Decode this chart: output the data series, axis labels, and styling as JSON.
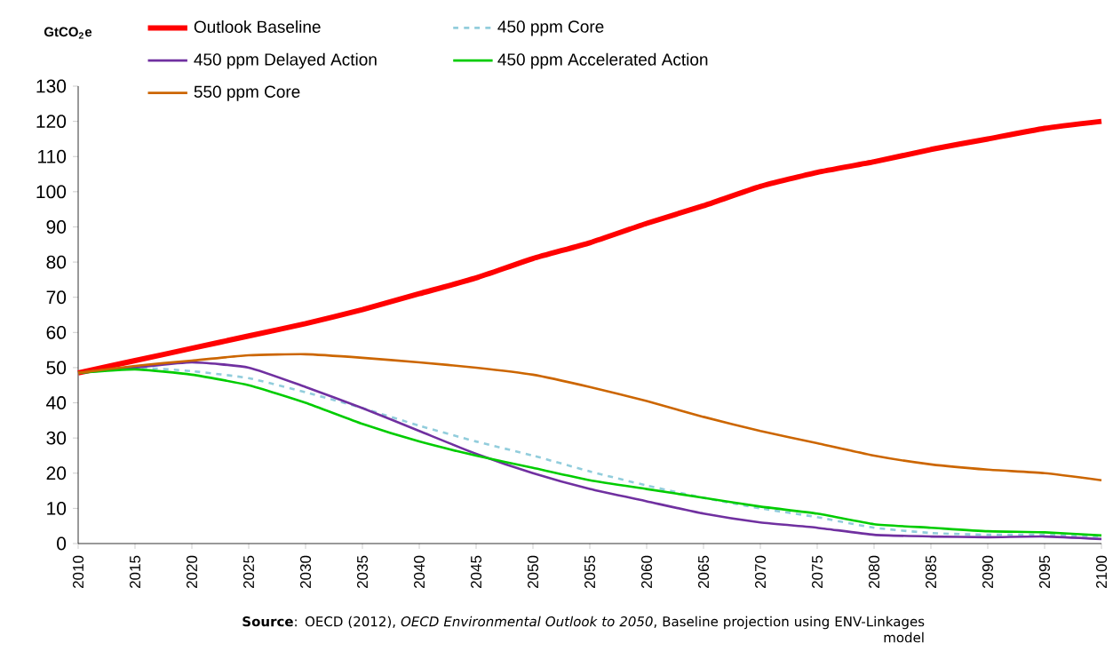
{
  "chart_data": {
    "type": "line",
    "ylabel": "GtCO$_{2}$e",
    "x": [
      2010,
      2015,
      2020,
      2025,
      2030,
      2035,
      2040,
      2045,
      2050,
      2055,
      2060,
      2065,
      2070,
      2075,
      2080,
      2085,
      2090,
      2095,
      2100
    ],
    "series": [
      {
        "name": "Outlook Baseline",
        "color": "#ff0000",
        "values": [
          48.5,
          52,
          55.5,
          59,
          62.5,
          66.5,
          71,
          75.5,
          81,
          85.5,
          91,
          96,
          101.5,
          105.5,
          108.5,
          112,
          115,
          118,
          120
        ]
      },
      {
        "name": "450 ppm Core",
        "color": "#92cddc",
        "line_style": "dashed",
        "values": [
          48.5,
          50,
          49,
          47,
          43,
          38.5,
          33.5,
          29,
          25,
          20.5,
          16.5,
          13,
          10,
          7.5,
          4.5,
          3,
          2.5,
          2.5,
          2
        ]
      },
      {
        "name": "450 ppm Delayed Action",
        "color": "#7030a0",
        "values": [
          48.5,
          50,
          51.5,
          50,
          44.5,
          38.5,
          32,
          25.5,
          20,
          15.5,
          12,
          8.5,
          6,
          4.5,
          2.5,
          2,
          1.8,
          2,
          1.3
        ]
      },
      {
        "name": "450 ppm Accelerated Action",
        "color": "#00cc00",
        "values": [
          48.5,
          49.5,
          48,
          45,
          40,
          34,
          29,
          25,
          21.5,
          18,
          15.5,
          13,
          10.5,
          8.5,
          5.5,
          4.5,
          3.5,
          3.2,
          2.3
        ]
      },
      {
        "name": "550 ppm Core",
        "color": "#cc6600",
        "values": [
          48.5,
          50.5,
          52,
          53.5,
          53.8,
          52.8,
          51.5,
          50,
          48,
          44.5,
          40.5,
          36,
          32,
          28.5,
          25,
          22.5,
          21,
          20,
          18
        ]
      }
    ],
    "xlim": [
      2010,
      2100
    ],
    "xticks": [
      2010,
      2015,
      2020,
      2025,
      2030,
      2035,
      2040,
      2045,
      2050,
      2055,
      2060,
      2065,
      2070,
      2075,
      2080,
      2085,
      2090,
      2095,
      2100
    ],
    "ylim": [
      0,
      130
    ],
    "yticks": [
      0,
      10,
      20,
      30,
      40,
      50,
      60,
      70,
      80,
      90,
      100,
      110,
      120,
      130
    ],
    "grid": false,
    "legend": "top",
    "line_style": "solid",
    "marker": "none",
    "annotations": [
      "**Source**: OECD (2012), *OECD Environmental Outlook to 2050*, Baseline projection using ENV-Linkages model"
    ]
  }
}
